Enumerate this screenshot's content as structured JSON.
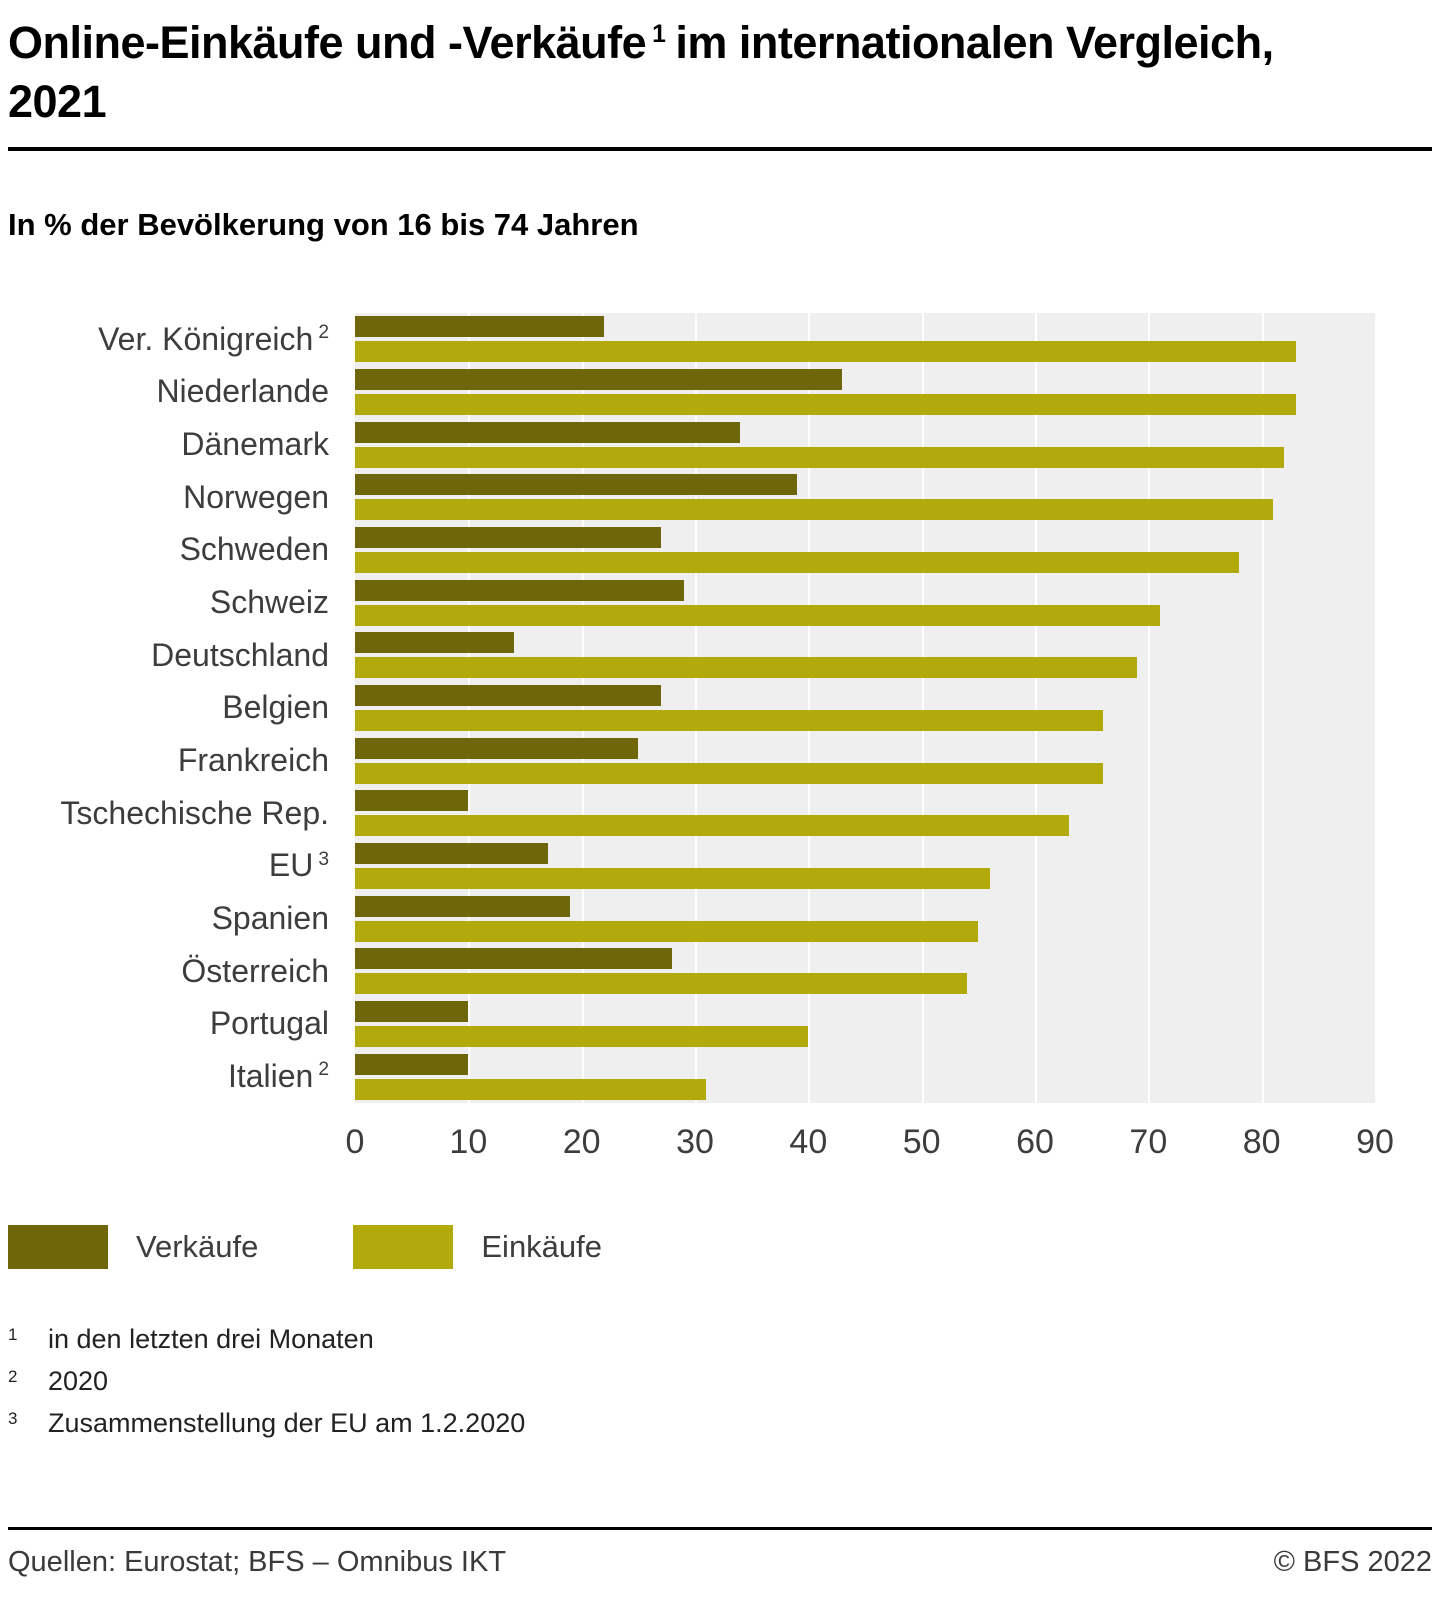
{
  "title": {
    "part1": "Online-Einkäufe und -Verkäufe",
    "sup": "1",
    "part2": "im internationalen Vergleich, 2021"
  },
  "subtitle": "In % der Bevölkerung von 16 bis 74 Jahren",
  "chart_data": {
    "type": "bar",
    "orientation": "horizontal",
    "xlim": [
      0,
      90
    ],
    "xticks": [
      0,
      10,
      20,
      30,
      40,
      50,
      60,
      70,
      80,
      90
    ],
    "grid": true,
    "plot_background": "#efefef",
    "gridline_color": "#ffffff",
    "legend_position": "bottom",
    "categories": [
      {
        "label": "Ver. Königreich",
        "sup": "2"
      },
      {
        "label": "Niederlande",
        "sup": ""
      },
      {
        "label": "Dänemark",
        "sup": ""
      },
      {
        "label": "Norwegen",
        "sup": ""
      },
      {
        "label": "Schweden",
        "sup": ""
      },
      {
        "label": "Schweiz",
        "sup": ""
      },
      {
        "label": "Deutschland",
        "sup": ""
      },
      {
        "label": "Belgien",
        "sup": ""
      },
      {
        "label": "Frankreich",
        "sup": ""
      },
      {
        "label": "Tschechische Rep.",
        "sup": ""
      },
      {
        "label": "EU",
        "sup": "3"
      },
      {
        "label": "Spanien",
        "sup": ""
      },
      {
        "label": "Österreich",
        "sup": ""
      },
      {
        "label": "Portugal",
        "sup": ""
      },
      {
        "label": "Italien",
        "sup": "2"
      }
    ],
    "series": [
      {
        "name": "Verkäufe",
        "color": "#6f660a",
        "values": [
          22,
          43,
          34,
          39,
          27,
          29,
          14,
          27,
          25,
          10,
          17,
          19,
          28,
          10,
          10
        ]
      },
      {
        "name": "Einkäufe",
        "color": "#b2a90d",
        "values": [
          83,
          83,
          82,
          81,
          78,
          71,
          69,
          66,
          66,
          63,
          56,
          55,
          54,
          40,
          31
        ]
      }
    ]
  },
  "legend": [
    {
      "label": "Verkäufe",
      "color": "#6f660a"
    },
    {
      "label": "Einkäufe",
      "color": "#b2a90d"
    }
  ],
  "footnotes": [
    {
      "sup": "1",
      "text": "in den letzten drei Monaten"
    },
    {
      "sup": "2",
      "text": "2020"
    },
    {
      "sup": "3",
      "text": "Zusammenstellung der EU am 1.2.2020"
    }
  ],
  "footer": {
    "source": "Quellen: Eurostat; BFS – Omnibus IKT",
    "copyright": "© BFS 2022"
  }
}
